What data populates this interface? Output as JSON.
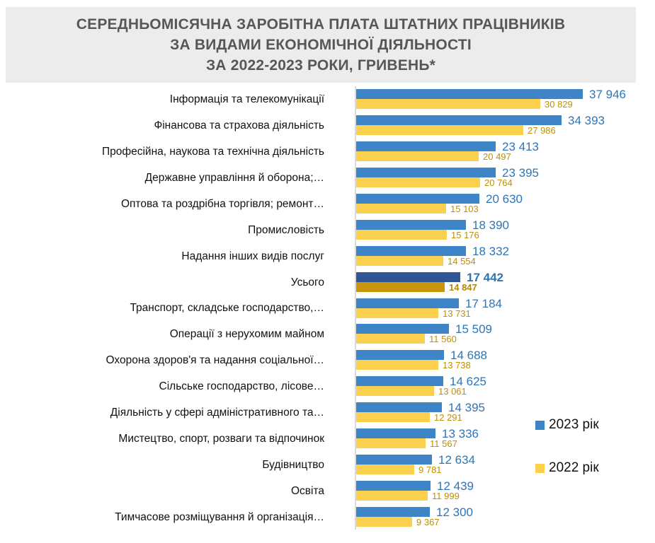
{
  "title": {
    "lines": [
      "СЕРЕДНЬОМІСЯЧНА ЗАРОБІТНА ПЛАТА ШТАТНИХ ПРАЦІВНИКІВ",
      "ЗА ВИДАМИ ЕКОНОМІЧНОЇ ДІЯЛЬНОСТІ",
      "ЗА 2022-2023 РОКИ, ГРИВЕНЬ*"
    ]
  },
  "legend": {
    "items": [
      {
        "label": "2023 рік",
        "color": "#3D85C6"
      },
      {
        "label": "2022 рік",
        "color": "#FCD04F"
      }
    ],
    "position": "right"
  },
  "colors": {
    "bar_2023": "#3D85C6",
    "bar_2022": "#FCD04F",
    "bar_2023_highlight": "#2F5597",
    "bar_2022_highlight": "#C8960D",
    "value_2023_text": "#2E75B6",
    "value_2022_text": "#BF9000",
    "title_background": "#ECECEC",
    "title_text": "#575757",
    "axis_line": "#DBDBDB",
    "category_text": "#111111"
  },
  "chart_data": {
    "type": "bar",
    "orientation": "horizontal",
    "title": "СЕРЕДНЬОМІСЯЧНА ЗАРОБІТНА ПЛАТА ШТАТНИХ ПРАЦІВНИКІВ ЗА ВИДАМИ ЕКОНОМІЧНОЇ ДІЯЛЬНОСТІ ЗА 2022-2023 РОКИ, ГРИВЕНЬ*",
    "categories": [
      "Інформація та телекомунікації",
      "Фінансова та страхова діяльність",
      "Професійна, наукова та технічна діяльність",
      "Державне управління й оборона;…",
      "Оптова та роздрібна торгівля; ремонт…",
      "Промисловість",
      "Надання інших видів послуг",
      "Усього",
      "Транспорт, складське господарство,…",
      "Операції з нерухомим майном",
      "Охорона здоров'я та надання соціальної…",
      "Сільське господарство, лісове…",
      "Діяльність у сфері адміністративного та…",
      "Мистецтво, спорт, розваги та відпочинок",
      "Будівництво",
      "Освіта",
      "Тимчасове розміщування й організація…"
    ],
    "series": [
      {
        "name": "2023 рік",
        "values": [
          37946,
          34393,
          23413,
          23395,
          20630,
          18390,
          18332,
          17442,
          17184,
          15509,
          14688,
          14625,
          14395,
          13336,
          12634,
          12439,
          12300
        ]
      },
      {
        "name": "2022 рік",
        "values": [
          30829,
          27986,
          20497,
          20764,
          15103,
          15176,
          14554,
          14847,
          13731,
          11560,
          13738,
          13061,
          12291,
          11567,
          9781,
          11999,
          9367
        ]
      }
    ],
    "highlight_category": "Усього",
    "value_labels": true,
    "grid": false,
    "xlim": [
      0,
      40000
    ],
    "legend_position": "right"
  }
}
